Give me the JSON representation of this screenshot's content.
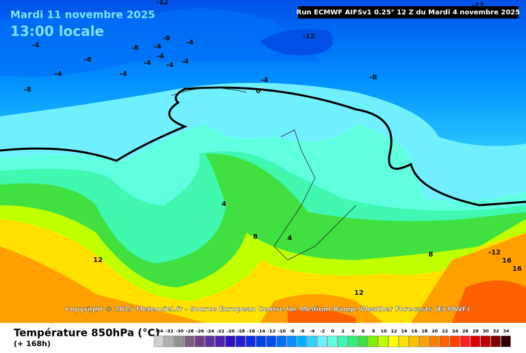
{
  "header": {
    "date": "Mardi 11 novembre 2025",
    "time": "13:00 locale",
    "run": "Run ECMWF AIFSv1 0.25° 12 Z du Mardi 4 novembre 2025"
  },
  "contour_labels": [
    -12,
    -12,
    -12,
    -8,
    -8,
    -8,
    -8,
    -8,
    -4,
    -4,
    -4,
    -4,
    -4,
    -4,
    -4,
    -4,
    -4,
    -4,
    0,
    4,
    4,
    8,
    8,
    12,
    12,
    -12,
    16,
    16
  ],
  "copyright": "Copyright © 2025 Meteociel.fr - Source European Centre for Medium-Range Weather Forecasts (ECMWF)",
  "footer": {
    "title": "Température 850hPa (°C)",
    "subtitle": "(+ 168h)"
  },
  "legend": {
    "values": [
      -34,
      -32,
      -30,
      -28,
      -26,
      -24,
      -22,
      -20,
      -18,
      -16,
      -14,
      -12,
      -10,
      -8,
      -6,
      -4,
      -2,
      0,
      2,
      4,
      6,
      8,
      10,
      12,
      14,
      16,
      18,
      20,
      22,
      24,
      26,
      28,
      30,
      32,
      34
    ],
    "colors": [
      "#d0d0d0",
      "#b0b0b0",
      "#909090",
      "#806080",
      "#704080",
      "#6030a0",
      "#5020b0",
      "#3010c0",
      "#2020d0",
      "#1030e0",
      "#0040e8",
      "#0050f0",
      "#0070f8",
      "#0090ff",
      "#00b0ff",
      "#30d0ff",
      "#70f0ff",
      "#60ffe0",
      "#40f8b0",
      "#30f080",
      "#40e040",
      "#80f000",
      "#c0ff00",
      "#ffff00",
      "#ffe000",
      "#ffc000",
      "#ffa000",
      "#ff8000",
      "#ff6000",
      "#ff4000",
      "#ff2020",
      "#e00000",
      "#c00000",
      "#800000",
      "#300000"
    ]
  }
}
